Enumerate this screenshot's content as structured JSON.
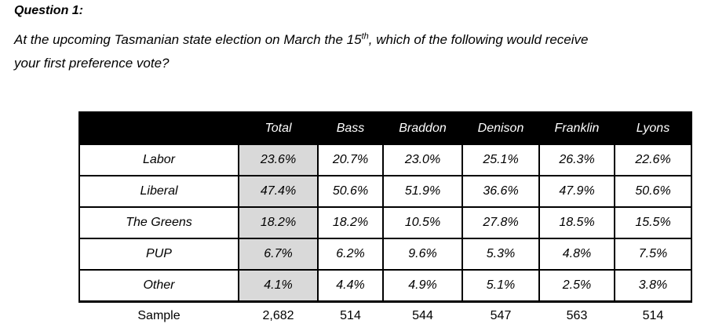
{
  "colors": {
    "header_bg": "#000000",
    "header_text": "#ffffff",
    "total_column_bg": "#d9d9d9",
    "border": "#000000",
    "text": "#000000",
    "page_bg": "#ffffff"
  },
  "page": {
    "title": "Question 1:",
    "question": {
      "line1_pre": "At the upcoming Tasmanian state election on March the 15",
      "superscript": "th",
      "line1_post": ", which of the following would receive",
      "line2": "your first preference vote?"
    }
  },
  "table": {
    "header": [
      "Total",
      "Bass",
      "Braddon",
      "Denison",
      "Franklin",
      "Lyons"
    ],
    "rows": [
      {
        "label": "Labor",
        "values": [
          "23.6%",
          "20.7%",
          "23.0%",
          "25.1%",
          "26.3%",
          "22.6%"
        ]
      },
      {
        "label": "Liberal",
        "values": [
          "47.4%",
          "50.6%",
          "51.9%",
          "36.6%",
          "47.9%",
          "50.6%"
        ]
      },
      {
        "label": "The Greens",
        "values": [
          "18.2%",
          "18.2%",
          "10.5%",
          "27.8%",
          "18.5%",
          "15.5%"
        ]
      },
      {
        "label": "PUP",
        "values": [
          "6.7%",
          "6.2%",
          "9.6%",
          "5.3%",
          "4.8%",
          "7.5%"
        ]
      },
      {
        "label": "Other",
        "values": [
          "4.1%",
          "4.4%",
          "4.9%",
          "5.1%",
          "2.5%",
          "3.8%"
        ]
      }
    ],
    "sample_row": {
      "label": "Sample",
      "values": [
        "2,682",
        "514",
        "544",
        "547",
        "563",
        "514"
      ]
    }
  }
}
